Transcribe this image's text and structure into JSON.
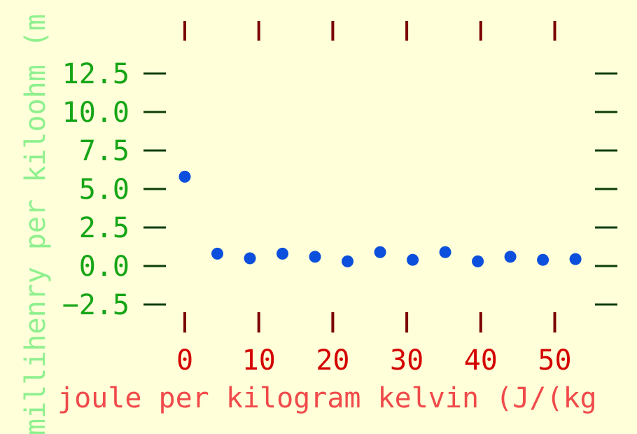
{
  "chart_data": {
    "type": "scatter",
    "title": "",
    "xlabel": "joule per kilogram kelvin (J/(kg",
    "ylabel": "millihenry per kiloohm (m",
    "xlim": [
      0,
      53
    ],
    "ylim": [
      -2.5,
      12.5
    ],
    "x_ticks": [
      0,
      10,
      20,
      30,
      40,
      50
    ],
    "x_tick_labels": [
      "0",
      "10",
      "20",
      "30",
      "40",
      "50"
    ],
    "y_ticks": [
      -2.5,
      0.0,
      2.5,
      5.0,
      7.5,
      10.0,
      12.5
    ],
    "y_tick_labels": [
      "−2.5",
      "0.0",
      "2.5",
      "5.0",
      "7.5",
      "10.0",
      "12.5"
    ],
    "grid": false,
    "legend": "none",
    "colors": {
      "points": "#0b4fdc",
      "x_axis": "#d40000",
      "x_tick_marks": "#7a0000",
      "y_axis": "#16a516",
      "y_tick_marks": "#0b3d0b",
      "xlabel": "#f04a4a",
      "ylabel": "#8ef08e",
      "background": "#ffffd9"
    },
    "series": [
      {
        "x": [
          0,
          4.4,
          8.8,
          13.2,
          17.6,
          22.0,
          26.4,
          30.8,
          35.2,
          39.6,
          44.0,
          48.4,
          52.8
        ],
        "y": [
          5.8,
          0.8,
          0.5,
          0.8,
          0.6,
          0.3,
          0.9,
          0.4,
          0.9,
          0.3,
          0.6,
          0.4,
          0.45
        ]
      }
    ]
  }
}
